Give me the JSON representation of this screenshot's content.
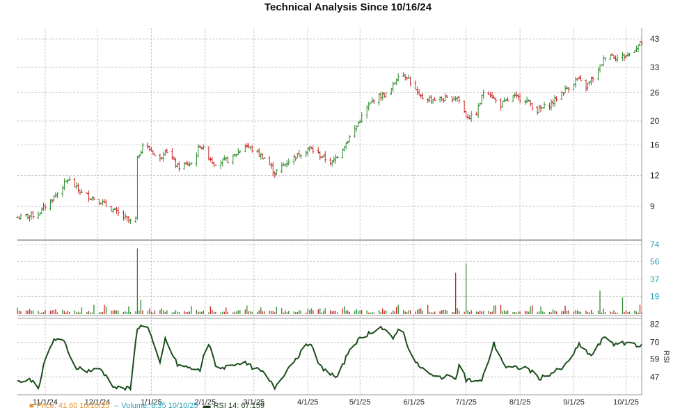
{
  "chart_data": {
    "type": "ohlc",
    "title": "Technical Analysis Since 10/16/24",
    "x_ticks": [
      "11/1/24",
      "12/1/24",
      "1/1/25",
      "2/1/25",
      "3/1/25",
      "4/1/25",
      "5/1/25",
      "6/1/25",
      "7/1/25",
      "8/1/25",
      "9/1/25",
      "10/1/25"
    ],
    "price_panel": {
      "scale": "log",
      "y_ticks": [
        9,
        12,
        16,
        20,
        26,
        33,
        43
      ],
      "ylim": [
        6.9,
        45
      ],
      "anchors": [
        [
          "10/16/24",
          8.1
        ],
        [
          "10/28/24",
          8.4
        ],
        [
          "11/4/24",
          9.5
        ],
        [
          "11/9/24",
          10.4
        ],
        [
          "11/14/24",
          11.6
        ],
        [
          "11/22/24",
          10.2
        ],
        [
          "12/3/24",
          9.4
        ],
        [
          "12/12/24",
          8.5
        ],
        [
          "12/20/24",
          7.8
        ],
        [
          "12/23/24",
          8.0
        ],
        [
          "12/24/24",
          14.0
        ],
        [
          "12/27/24",
          16.0
        ],
        [
          "1/2/25",
          15.0
        ],
        [
          "1/5/25",
          13.5
        ],
        [
          "1/9/25",
          15.5
        ],
        [
          "1/16/25",
          13.0
        ],
        [
          "1/25/25",
          13.5
        ],
        [
          "1/29/25",
          16.0
        ],
        [
          "2/6/25",
          13.5
        ],
        [
          "2/16/25",
          14.0
        ],
        [
          "2/24/25",
          16.0
        ],
        [
          "3/8/25",
          14.0
        ],
        [
          "3/13/25",
          12.3
        ],
        [
          "3/22/25",
          14.0
        ],
        [
          "4/2/25",
          15.5
        ],
        [
          "4/10/25",
          14.2
        ],
        [
          "4/15/25",
          13.5
        ],
        [
          "4/22/25",
          16.0
        ],
        [
          "4/27/25",
          18.0
        ],
        [
          "5/4/25",
          22.0
        ],
        [
          "5/10/25",
          25.0
        ],
        [
          "5/18/25",
          25.8
        ],
        [
          "5/23/25",
          31.0
        ],
        [
          "5/28/25",
          30.5
        ],
        [
          "6/4/25",
          25.0
        ],
        [
          "6/11/25",
          24.5
        ],
        [
          "6/20/25",
          24.5
        ],
        [
          "6/26/25",
          25.0
        ],
        [
          "7/1/25",
          21.0
        ],
        [
          "7/6/25",
          20.5
        ],
        [
          "7/12/25",
          27.5
        ],
        [
          "7/20/25",
          23.0
        ],
        [
          "7/28/25",
          25.0
        ],
        [
          "8/4/25",
          24.5
        ],
        [
          "8/11/25",
          22.0
        ],
        [
          "8/19/25",
          23.5
        ],
        [
          "8/25/25",
          26.0
        ],
        [
          "9/3/25",
          29.5
        ],
        [
          "9/8/25",
          27.5
        ],
        [
          "9/15/25",
          32.0
        ],
        [
          "9/20/25",
          38.0
        ],
        [
          "9/26/25",
          36.0
        ],
        [
          "10/2/25",
          37.0
        ],
        [
          "10/7/25",
          40.0
        ],
        [
          "10/10/25",
          41.6
        ]
      ]
    },
    "volume_panel": {
      "y_ticks": [
        19,
        37,
        56,
        74
      ],
      "ylim": [
        0,
        74
      ],
      "spikes": [
        [
          "12/24/24",
          70
        ],
        [
          "12/26/24",
          15
        ],
        [
          "5/23/25",
          10
        ],
        [
          "6/25/25",
          44
        ],
        [
          "7/1/25",
          54
        ],
        [
          "9/16/25",
          25
        ],
        [
          "9/29/25",
          18
        ],
        [
          "10/9/25",
          10
        ]
      ]
    },
    "rsi_panel": {
      "y_ticks": [
        47,
        59,
        70,
        82
      ],
      "ylim": [
        37,
        84
      ],
      "anchors": [
        [
          "10/16/24",
          44
        ],
        [
          "10/24/24",
          45
        ],
        [
          "10/28/24",
          40
        ],
        [
          "11/1/24",
          58
        ],
        [
          "11/6/24",
          72
        ],
        [
          "11/12/24",
          70
        ],
        [
          "11/18/24",
          54
        ],
        [
          "11/25/24",
          51
        ],
        [
          "12/3/24",
          52
        ],
        [
          "12/11/24",
          40
        ],
        [
          "12/20/24",
          39
        ],
        [
          "12/24/24",
          80
        ],
        [
          "12/30/24",
          81
        ],
        [
          "1/6/25",
          55
        ],
        [
          "1/9/25",
          72
        ],
        [
          "1/16/25",
          55
        ],
        [
          "1/29/25",
          51
        ],
        [
          "2/2/25",
          72
        ],
        [
          "2/8/25",
          52
        ],
        [
          "2/22/25",
          57
        ],
        [
          "3/6/25",
          50
        ],
        [
          "3/13/25",
          40
        ],
        [
          "3/22/25",
          55
        ],
        [
          "4/2/25",
          70
        ],
        [
          "4/8/25",
          54
        ],
        [
          "4/18/25",
          46
        ],
        [
          "4/26/25",
          68
        ],
        [
          "5/6/25",
          76
        ],
        [
          "5/13/25",
          80
        ],
        [
          "5/20/25",
          72
        ],
        [
          "5/24/25",
          82
        ],
        [
          "6/1/25",
          57
        ],
        [
          "6/12/25",
          47
        ],
        [
          "6/25/25",
          47
        ],
        [
          "6/28/25",
          58
        ],
        [
          "7/1/25",
          45
        ],
        [
          "7/10/25",
          44
        ],
        [
          "7/17/25",
          69
        ],
        [
          "7/24/25",
          53
        ],
        [
          "8/5/25",
          53
        ],
        [
          "8/12/25",
          46
        ],
        [
          "8/26/25",
          53
        ],
        [
          "9/4/25",
          68
        ],
        [
          "9/11/25",
          61
        ],
        [
          "9/19/25",
          74
        ],
        [
          "9/25/25",
          68
        ],
        [
          "10/3/25",
          70
        ],
        [
          "10/10/25",
          67.2
        ]
      ]
    },
    "legend": {
      "price": "Price: 41.60  10/10/25",
      "volume": "Volume: 8.35  10/10/25",
      "rsi": "RSI 14: 67.159"
    },
    "rsi_axis_label": "RSI",
    "colors": {
      "up": "#2e8b2e",
      "down": "#cc2222",
      "rsi_line": "#1b4d1b",
      "grid": "#bbbbbb",
      "axis_text_price": "#222222",
      "axis_text_volume": "#2a9fb8",
      "axis_text_rsi": "#222222",
      "legend_price": "#e8912d",
      "legend_volume": "#2aa0b5",
      "legend_rsi": "#1b3b1b"
    },
    "grid": true
  }
}
